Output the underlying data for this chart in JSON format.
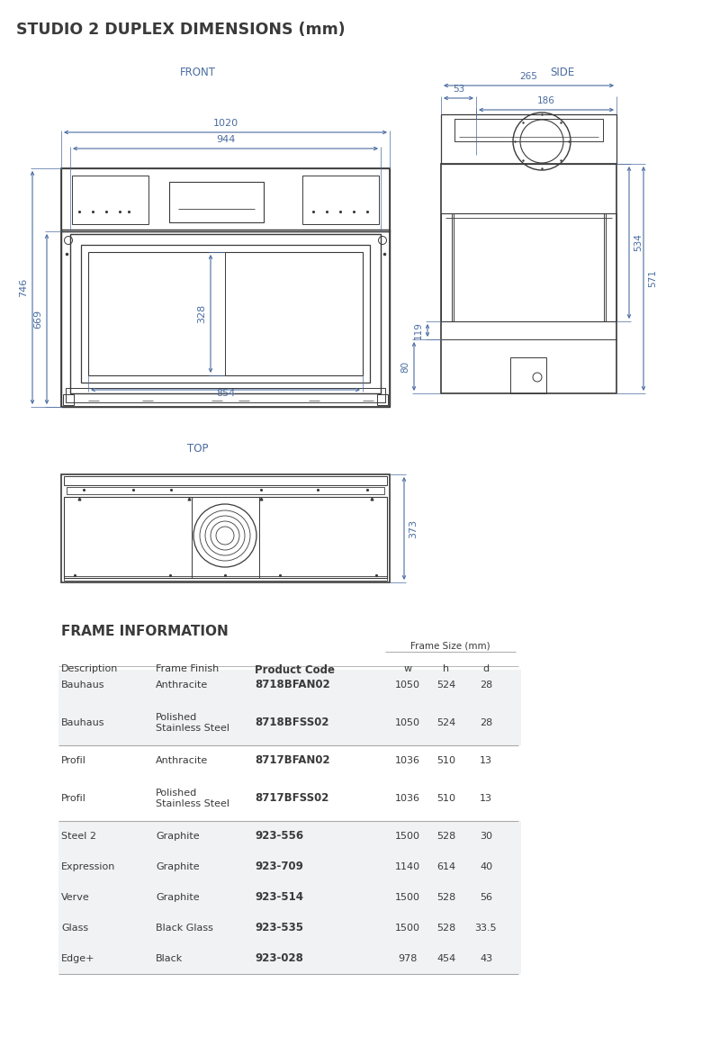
{
  "title": "STUDIO 2 DUPLEX DIMENSIONS (mm)",
  "title_color": "#3a3a3a",
  "bg_color": "#ffffff",
  "line_color": "#3a3a3a",
  "dim_color": "#4a6ca0",
  "text_color": "#3a3a3a",
  "section_label_color": "#4a6ca0",
  "frame_info_title": "FRAME INFORMATION",
  "frame_size_label": "Frame Size (mm)",
  "table_data": [
    [
      "Bauhaus",
      "Anthracite",
      "8718BFAN02",
      "1050",
      "524",
      "28"
    ],
    [
      "Bauhaus",
      "Polished\nStainless Steel",
      "8718BFSS02",
      "1050",
      "524",
      "28"
    ],
    [
      "Profil",
      "Anthracite",
      "8717BFAN02",
      "1036",
      "510",
      "13"
    ],
    [
      "Profil",
      "Polished\nStainless Steel",
      "8717BFSS02",
      "1036",
      "510",
      "13"
    ],
    [
      "Steel 2",
      "Graphite",
      "923-556",
      "1500",
      "528",
      "30"
    ],
    [
      "Expression",
      "Graphite",
      "923-709",
      "1140",
      "614",
      "40"
    ],
    [
      "Verve",
      "Graphite",
      "923-514",
      "1500",
      "528",
      "56"
    ],
    [
      "Glass",
      "Black Glass",
      "923-535",
      "1500",
      "528",
      "33.5"
    ],
    [
      "Edge+",
      "Black",
      "923-028",
      "978",
      "454",
      "43"
    ]
  ],
  "row_shade_color": "#f0f2f4"
}
